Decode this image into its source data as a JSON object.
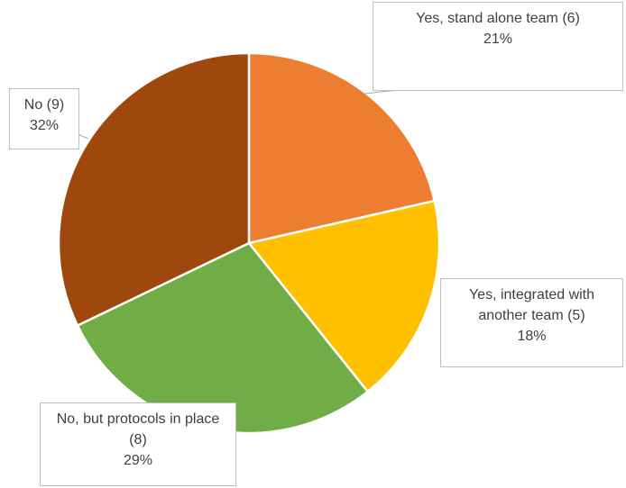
{
  "chart_data": {
    "type": "pie",
    "title": "",
    "slices": [
      {
        "label": "Yes, stand alone team (6)",
        "value": 6,
        "percent": "21%",
        "color": "#ED7D31"
      },
      {
        "label": "Yes, integrated with another team (5)",
        "value": 5,
        "percent": "18%",
        "color": "#FFC000"
      },
      {
        "label": "No, but protocols in place (8)",
        "value": 8,
        "percent": "29%",
        "color": "#70AD47"
      },
      {
        "label": "No (9)",
        "value": 9,
        "percent": "32%",
        "color": "#9E480E"
      }
    ]
  }
}
